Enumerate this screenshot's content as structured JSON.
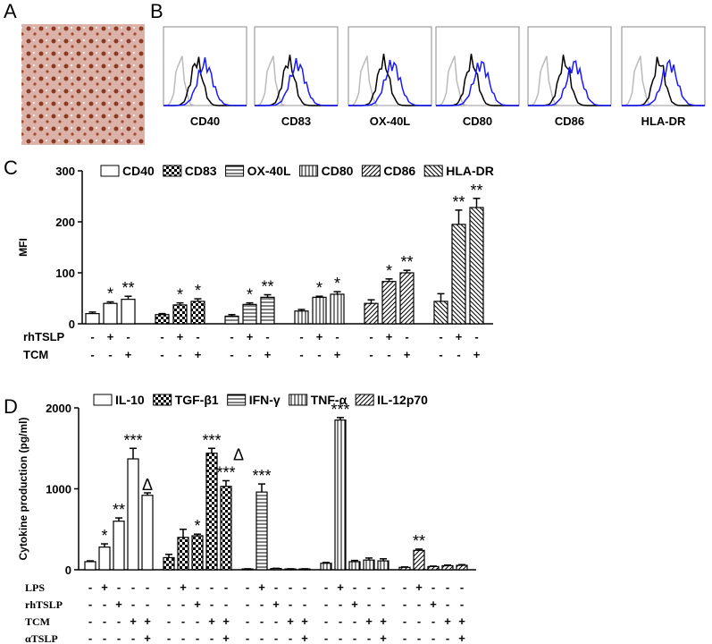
{
  "panel_labels": {
    "a": "A",
    "b": "B"
  },
  "flow_panel": {
    "markers": [
      "CD40",
      "CD83",
      "OX-40L",
      "CD80",
      "CD86",
      "HLA-DR"
    ]
  },
  "chart_data": [
    {
      "type": "bar",
      "label": "C",
      "ylabel": "MFI",
      "ylim": [
        0,
        300
      ],
      "yticks": [
        0,
        100,
        200,
        300
      ],
      "conditions": [
        {
          "name": "rhTSLP",
          "marks": [
            "-",
            "+",
            "-"
          ]
        },
        {
          "name": "TCM",
          "marks": [
            "-",
            "-",
            "+"
          ]
        }
      ],
      "series": [
        {
          "name": "CD40",
          "pattern": "none",
          "values": [
            20,
            40,
            48
          ],
          "errors": [
            3,
            3,
            6
          ],
          "annotations": [
            [],
            [
              "*"
            ],
            [
              "**"
            ]
          ]
        },
        {
          "name": "CD83",
          "pattern": "checker",
          "values": [
            18,
            37,
            44
          ],
          "errors": [
            2,
            4,
            5
          ],
          "annotations": [
            [],
            [
              "*"
            ],
            [
              "*"
            ]
          ]
        },
        {
          "name": "OX-40L",
          "pattern": "hlines",
          "values": [
            15,
            38,
            52
          ],
          "errors": [
            3,
            3,
            5
          ],
          "annotations": [
            [],
            [
              "*"
            ],
            [
              "**"
            ]
          ]
        },
        {
          "name": "CD80",
          "pattern": "vlines",
          "values": [
            25,
            52,
            58
          ],
          "errors": [
            3,
            2,
            5
          ],
          "annotations": [
            [],
            [
              "*"
            ],
            [
              "*"
            ]
          ]
        },
        {
          "name": "CD86",
          "pattern": "diag-right",
          "values": [
            40,
            83,
            100
          ],
          "errors": [
            7,
            5,
            5
          ],
          "annotations": [
            [],
            [
              "*"
            ],
            [
              "**"
            ]
          ]
        },
        {
          "name": "HLA-DR",
          "pattern": "diag-left",
          "values": [
            44,
            195,
            228
          ],
          "errors": [
            15,
            28,
            18
          ],
          "annotations": [
            [],
            [
              "**"
            ],
            [
              "**"
            ]
          ]
        }
      ]
    },
    {
      "type": "bar",
      "label": "D",
      "ylabel": "Cytokine production (pg/ml)",
      "ylim": [
        0,
        2000
      ],
      "yticks": [
        0,
        1000,
        2000
      ],
      "conditions": [
        {
          "name": "LPS",
          "marks": [
            "-",
            "+",
            "-",
            "-",
            "-"
          ]
        },
        {
          "name": "rhTSLP",
          "marks": [
            "-",
            "-",
            "+",
            "-",
            "-"
          ]
        },
        {
          "name": "TCM",
          "marks": [
            "-",
            "-",
            "-",
            "+",
            "+"
          ]
        },
        {
          "name": "αTSLP",
          "marks": [
            "-",
            "-",
            "-",
            "-",
            "+"
          ]
        }
      ],
      "series": [
        {
          "name": "IL-10",
          "pattern": "none",
          "values": [
            100,
            280,
            600,
            1370,
            920
          ],
          "errors": [
            10,
            40,
            40,
            130,
            30
          ],
          "annotations": [
            [],
            [
              "*"
            ],
            [
              "**"
            ],
            [
              "***"
            ],
            [
              "Δ"
            ]
          ]
        },
        {
          "name": "TGF-β1",
          "pattern": "checker",
          "values": [
            150,
            400,
            420,
            1440,
            1030
          ],
          "errors": [
            40,
            100,
            20,
            60,
            70
          ],
          "annotations": [
            [],
            [],
            [
              "*"
            ],
            [
              "***"
            ],
            [
              "***",
              "Δ"
            ]
          ]
        },
        {
          "name": "IFN-γ",
          "pattern": "hlines",
          "values": [
            10,
            960,
            15,
            10,
            10
          ],
          "errors": [
            2,
            100,
            3,
            2,
            2
          ],
          "annotations": [
            [],
            [
              "***"
            ],
            [],
            [],
            []
          ]
        },
        {
          "name": "TNF-α",
          "pattern": "vlines",
          "values": [
            80,
            1850,
            100,
            120,
            110
          ],
          "errors": [
            10,
            30,
            15,
            25,
            25
          ],
          "annotations": [
            [],
            [
              "***"
            ],
            [],
            [],
            []
          ]
        },
        {
          "name": "IL-12p70",
          "pattern": "diag-right",
          "values": [
            30,
            240,
            40,
            50,
            55
          ],
          "errors": [
            5,
            15,
            5,
            8,
            8
          ],
          "annotations": [
            [],
            [
              "**"
            ],
            [],
            [],
            []
          ]
        }
      ]
    }
  ]
}
